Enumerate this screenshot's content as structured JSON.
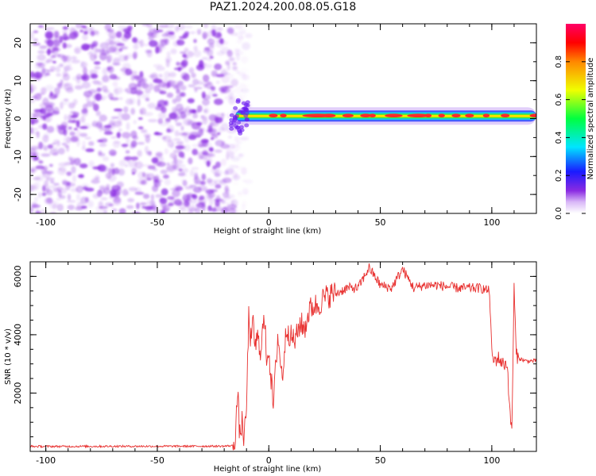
{
  "title": "PAZ1.2024.200.08.05.G18",
  "colors": {
    "snr_line": "#e8302f",
    "speckle": "#8a2be2",
    "axis": "#000000"
  },
  "chart_data": [
    {
      "type": "heatmap",
      "xlabel": "Height of straight line (km)",
      "ylabel": "Frequency (Hz)",
      "xlim": [
        -107,
        120
      ],
      "ylim": [
        -25,
        25
      ],
      "xticks": [
        -100,
        -50,
        0,
        50,
        100
      ],
      "yticks": [
        -20,
        -10,
        0,
        10,
        20
      ],
      "colorbar": {
        "label": "Normalized spectral amplitude",
        "range": [
          0,
          1
        ],
        "ticks": [
          0.0,
          0.2,
          0.4,
          0.6,
          0.8
        ],
        "tick_labels": [
          "0.0",
          "0.2",
          "0.4",
          "0.6",
          "0.8"
        ],
        "colormap": "gist_rainbow_r"
      },
      "regions": [
        {
          "name": "noise",
          "x": [
            -107,
            -15
          ],
          "y": [
            -25,
            25
          ],
          "amplitude": [
            0.05,
            0.2
          ]
        },
        {
          "name": "signal-band",
          "x": [
            -15,
            120
          ],
          "frequency": 0.7,
          "width_hz": 1.5,
          "amplitude": [
            0.4,
            1.0
          ]
        }
      ]
    },
    {
      "type": "line",
      "xlabel": "Height of straight line (km)",
      "ylabel": "SNR (10 * v/v)",
      "xlim": [
        -107,
        120
      ],
      "ylim": [
        0,
        6500
      ],
      "xticks": [
        -100,
        -50,
        0,
        50,
        100
      ],
      "yticks": [
        2000,
        4000,
        6000
      ],
      "series": [
        {
          "x": [
            -107,
            -20,
            -16,
            -15,
            -14,
            -13,
            -12,
            -11,
            -10,
            -9,
            -8,
            -7,
            -6,
            -5,
            -4,
            -3,
            -2,
            -1,
            0,
            2,
            4,
            6,
            8,
            10,
            12,
            14,
            16,
            18,
            20,
            22,
            24,
            26,
            28,
            30,
            35,
            40,
            45,
            50,
            55,
            60,
            65,
            70,
            75,
            80,
            85,
            90,
            95,
            99,
            100,
            101,
            103,
            105,
            107,
            108,
            109,
            110,
            111,
            112,
            115,
            120
          ],
          "y": [
            170,
            180,
            200,
            600,
            2000,
            500,
            1000,
            400,
            1500,
            4600,
            3800,
            4300,
            3600,
            3900,
            3400,
            4000,
            4500,
            3300,
            3500,
            1500,
            4000,
            2500,
            4300,
            3900,
            3800,
            4400,
            4200,
            4800,
            5000,
            5000,
            5200,
            5300,
            5400,
            5400,
            5600,
            5600,
            6300,
            5700,
            5600,
            6250,
            5600,
            5700,
            5700,
            5650,
            5600,
            5600,
            5600,
            5500,
            3300,
            3100,
            3200,
            3000,
            3000,
            1400,
            700,
            5600,
            3300,
            3200,
            3100,
            3100
          ]
        }
      ]
    }
  ]
}
